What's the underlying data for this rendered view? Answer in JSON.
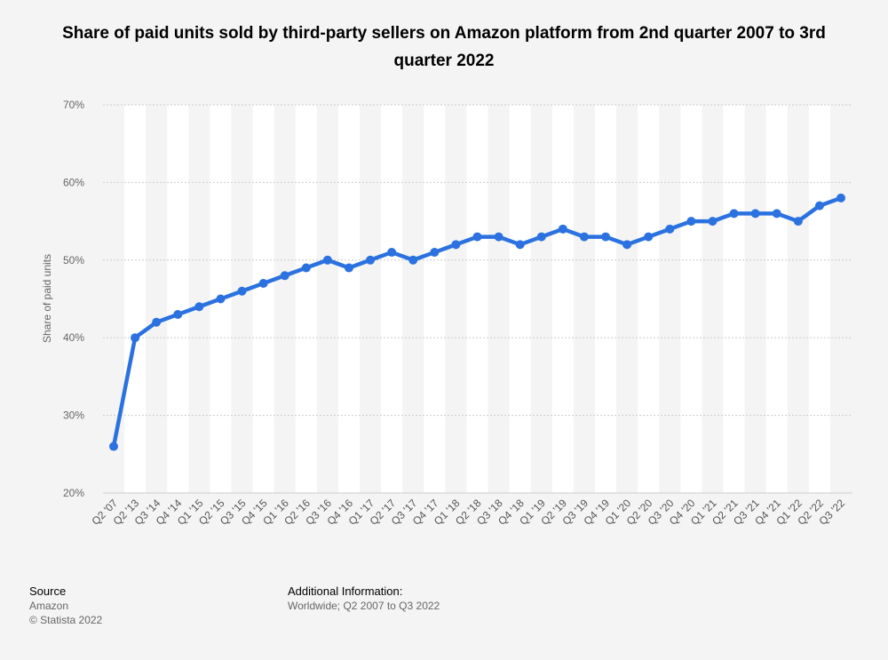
{
  "title": "Share of paid units sold by third-party sellers on Amazon platform from 2nd quarter 2007 to 3rd quarter 2022",
  "footer": {
    "source_heading": "Source",
    "source_name": "Amazon",
    "copyright": "© Statista 2022",
    "info_heading": "Additional Information:",
    "info_text": "Worldwide; Q2 2007 to Q3 2022"
  },
  "colors": {
    "line": "#2b72e0",
    "background": "#f4f4f4",
    "band": "#ffffff",
    "grid": "#cccccc"
  },
  "chart_data": {
    "type": "line",
    "title": "Share of paid units sold by third-party sellers on Amazon platform from 2nd quarter 2007 to 3rd quarter 2022",
    "ylabel": "Share of paid units",
    "xlabel": "",
    "ylim": [
      20,
      70
    ],
    "yticks": [
      "20%",
      "30%",
      "40%",
      "50%",
      "60%",
      "70%"
    ],
    "grid": true,
    "categories": [
      "Q2 '07",
      "Q2 '13",
      "Q3 '14",
      "Q4 '14",
      "Q1 '15",
      "Q2 '15",
      "Q3 '15",
      "Q4 '15",
      "Q1 '16",
      "Q2 '16",
      "Q3 '16",
      "Q4 '16",
      "Q1 '17",
      "Q2 '17",
      "Q3 '17",
      "Q4 '17",
      "Q1 '18",
      "Q2 '18",
      "Q3 '18",
      "Q4 '18",
      "Q1 '19",
      "Q2 '19",
      "Q3 '19",
      "Q4 '19",
      "Q1 '20",
      "Q2 '20",
      "Q3 '20",
      "Q4 '20",
      "Q1 '21",
      "Q2 '21",
      "Q3 '21",
      "Q4 '21",
      "Q1 '22",
      "Q2 '22",
      "Q3 '22"
    ],
    "series": [
      {
        "values": [
          26,
          40,
          42,
          43,
          44,
          45,
          46,
          47,
          48,
          49,
          50,
          49,
          50,
          51,
          50,
          51,
          52,
          53,
          53,
          52,
          53,
          54,
          53,
          53,
          52,
          53,
          54,
          55,
          55,
          56,
          56,
          56,
          55,
          57,
          58
        ]
      }
    ]
  }
}
